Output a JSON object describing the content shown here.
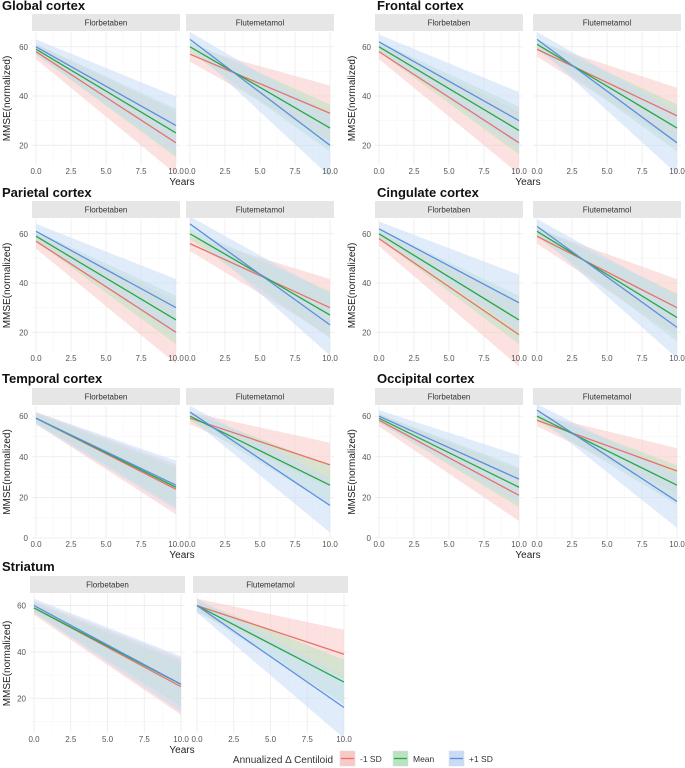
{
  "chart_data": [
    {
      "type": "line",
      "title": "Global cortex",
      "xlabel": "Years",
      "ylabel": "MMSE(normalized)",
      "xlim": [
        0,
        10
      ],
      "ylim": [
        12,
        66
      ],
      "x_ticks": [
        "0.0",
        "2.5",
        "5.0",
        "7.5",
        "10.0"
      ],
      "y_ticks": [
        20,
        40,
        60
      ],
      "facets": [
        {
          "name": "Florbetaben",
          "series": [
            {
              "name": "-1 SD",
              "x": [
                0,
                10
              ],
              "y": [
                58,
                21
              ]
            },
            {
              "name": "Mean",
              "x": [
                0,
                10
              ],
              "y": [
                59,
                25
              ]
            },
            {
              "name": "+1 SD",
              "x": [
                0,
                10
              ],
              "y": [
                60,
                28
              ]
            }
          ]
        },
        {
          "name": "Flutemetamol",
          "series": [
            {
              "name": "-1 SD",
              "x": [
                0,
                10
              ],
              "y": [
                57,
                33
              ]
            },
            {
              "name": "Mean",
              "x": [
                0,
                10
              ],
              "y": [
                60,
                27
              ]
            },
            {
              "name": "+1 SD",
              "x": [
                0,
                10
              ],
              "y": [
                63,
                20
              ]
            }
          ]
        }
      ]
    },
    {
      "type": "line",
      "title": "Frontal cortex",
      "xlabel": "Years",
      "ylabel": "MMSE(normalized)",
      "xlim": [
        0,
        10
      ],
      "ylim": [
        12,
        66
      ],
      "x_ticks": [
        "0.0",
        "2.5",
        "5.0",
        "7.5",
        "10.0"
      ],
      "y_ticks": [
        20,
        40,
        60
      ],
      "facets": [
        {
          "name": "Florbetaben",
          "series": [
            {
              "name": "-1 SD",
              "x": [
                0,
                10
              ],
              "y": [
                58,
                21
              ]
            },
            {
              "name": "Mean",
              "x": [
                0,
                10
              ],
              "y": [
                60,
                26
              ]
            },
            {
              "name": "+1 SD",
              "x": [
                0,
                10
              ],
              "y": [
                62,
                30
              ]
            }
          ]
        },
        {
          "name": "Flutemetamol",
          "series": [
            {
              "name": "-1 SD",
              "x": [
                0,
                10
              ],
              "y": [
                59,
                32
              ]
            },
            {
              "name": "Mean",
              "x": [
                0,
                10
              ],
              "y": [
                61,
                27
              ]
            },
            {
              "name": "+1 SD",
              "x": [
                0,
                10
              ],
              "y": [
                63,
                21
              ]
            }
          ]
        }
      ]
    },
    {
      "type": "line",
      "title": "Parietal cortex",
      "xlabel": "",
      "ylabel": "MMSE(normalized)",
      "xlim": [
        0,
        10
      ],
      "ylim": [
        12,
        66
      ],
      "x_ticks": [
        "0.0",
        "2.5",
        "5.0",
        "7.5",
        "10.0"
      ],
      "y_ticks": [
        20,
        40,
        60
      ],
      "facets": [
        {
          "name": "Florbetaben",
          "series": [
            {
              "name": "-1 SD",
              "x": [
                0,
                10
              ],
              "y": [
                57,
                20
              ]
            },
            {
              "name": "Mean",
              "x": [
                0,
                10
              ],
              "y": [
                59,
                25
              ]
            },
            {
              "name": "+1 SD",
              "x": [
                0,
                10
              ],
              "y": [
                61,
                30
              ]
            }
          ]
        },
        {
          "name": "Flutemetamol",
          "series": [
            {
              "name": "-1 SD",
              "x": [
                0,
                10
              ],
              "y": [
                56,
                30
              ]
            },
            {
              "name": "Mean",
              "x": [
                0,
                10
              ],
              "y": [
                60,
                27
              ]
            },
            {
              "name": "+1 SD",
              "x": [
                0,
                10
              ],
              "y": [
                64,
                23
              ]
            }
          ]
        }
      ]
    },
    {
      "type": "line",
      "title": "Cingulate cortex",
      "xlabel": "",
      "ylabel": "MMSE(normalized)",
      "xlim": [
        0,
        10
      ],
      "ylim": [
        12,
        66
      ],
      "x_ticks": [
        "0.0",
        "2.5",
        "5.0",
        "7.5",
        "10.0"
      ],
      "y_ticks": [
        20,
        40,
        60
      ],
      "facets": [
        {
          "name": "Florbetaben",
          "series": [
            {
              "name": "-1 SD",
              "x": [
                0,
                10
              ],
              "y": [
                58,
                19
              ]
            },
            {
              "name": "Mean",
              "x": [
                0,
                10
              ],
              "y": [
                60,
                25
              ]
            },
            {
              "name": "+1 SD",
              "x": [
                0,
                10
              ],
              "y": [
                62,
                32
              ]
            }
          ]
        },
        {
          "name": "Flutemetamol",
          "series": [
            {
              "name": "-1 SD",
              "x": [
                0,
                10
              ],
              "y": [
                59,
                30
              ]
            },
            {
              "name": "Mean",
              "x": [
                0,
                10
              ],
              "y": [
                61,
                26
              ]
            },
            {
              "name": "+1 SD",
              "x": [
                0,
                10
              ],
              "y": [
                63,
                22
              ]
            }
          ]
        }
      ]
    },
    {
      "type": "line",
      "title": "Temporal cortex",
      "xlabel": "Years",
      "ylabel": "MMSE(normalized)",
      "xlim": [
        0,
        10
      ],
      "ylim": [
        0,
        65
      ],
      "x_ticks": [
        "0.0",
        "2.5",
        "5.0",
        "7.5",
        "10.0"
      ],
      "y_ticks": [
        0,
        20,
        40,
        60
      ],
      "facets": [
        {
          "name": "Florbetaben",
          "series": [
            {
              "name": "-1 SD",
              "x": [
                0,
                10
              ],
              "y": [
                59,
                24
              ]
            },
            {
              "name": "Mean",
              "x": [
                0,
                10
              ],
              "y": [
                59,
                25
              ]
            },
            {
              "name": "+1 SD",
              "x": [
                0,
                10
              ],
              "y": [
                59,
                26
              ]
            }
          ]
        },
        {
          "name": "Flutemetamol",
          "series": [
            {
              "name": "-1 SD",
              "x": [
                0,
                10
              ],
              "y": [
                59,
                36
              ]
            },
            {
              "name": "Mean",
              "x": [
                0,
                10
              ],
              "y": [
                60,
                26
              ]
            },
            {
              "name": "+1 SD",
              "x": [
                0,
                10
              ],
              "y": [
                62,
                16
              ]
            }
          ]
        }
      ]
    },
    {
      "type": "line",
      "title": "Occipital cortex",
      "xlabel": "Years",
      "ylabel": "MMSE(normalized)",
      "xlim": [
        0,
        10
      ],
      "ylim": [
        0,
        65
      ],
      "x_ticks": [
        "0.0",
        "2.5",
        "5.0",
        "7.5",
        "10.0"
      ],
      "y_ticks": [
        0,
        20,
        40,
        60
      ],
      "facets": [
        {
          "name": "Florbetaben",
          "series": [
            {
              "name": "-1 SD",
              "x": [
                0,
                10
              ],
              "y": [
                58,
                21
              ]
            },
            {
              "name": "Mean",
              "x": [
                0,
                10
              ],
              "y": [
                59,
                25
              ]
            },
            {
              "name": "+1 SD",
              "x": [
                0,
                10
              ],
              "y": [
                60,
                29
              ]
            }
          ]
        },
        {
          "name": "Flutemetamol",
          "series": [
            {
              "name": "-1 SD",
              "x": [
                0,
                10
              ],
              "y": [
                58,
                33
              ]
            },
            {
              "name": "Mean",
              "x": [
                0,
                10
              ],
              "y": [
                60,
                26
              ]
            },
            {
              "name": "+1 SD",
              "x": [
                0,
                10
              ],
              "y": [
                63,
                18
              ]
            }
          ]
        }
      ]
    },
    {
      "type": "line",
      "title": "Striatum",
      "xlabel": "Years",
      "ylabel": "MMSE(normalized)",
      "xlim": [
        0,
        10
      ],
      "ylim": [
        5,
        65
      ],
      "x_ticks": [
        "0.0",
        "2.5",
        "5.0",
        "7.5",
        "10.0"
      ],
      "y_ticks": [
        20,
        40,
        60
      ],
      "facets": [
        {
          "name": "Florbetaben",
          "series": [
            {
              "name": "-1 SD",
              "x": [
                0,
                10
              ],
              "y": [
                59,
                25
              ]
            },
            {
              "name": "Mean",
              "x": [
                0,
                10
              ],
              "y": [
                59,
                26
              ]
            },
            {
              "name": "+1 SD",
              "x": [
                0,
                10
              ],
              "y": [
                60,
                26
              ]
            }
          ]
        },
        {
          "name": "Flutemetamol",
          "series": [
            {
              "name": "-1 SD",
              "x": [
                0,
                10
              ],
              "y": [
                60,
                39
              ]
            },
            {
              "name": "Mean",
              "x": [
                0,
                10
              ],
              "y": [
                60,
                27
              ]
            },
            {
              "name": "+1 SD",
              "x": [
                0,
                10
              ],
              "y": [
                60,
                16
              ]
            }
          ]
        }
      ]
    }
  ],
  "legend": {
    "title": "Annualized Δ Centiloid",
    "placement": "bottom",
    "items": [
      {
        "label": "-1 SD",
        "color": "#e8726a"
      },
      {
        "label": "Mean",
        "color": "#27a844"
      },
      {
        "label": "+1 SD",
        "color": "#5b8fde"
      }
    ]
  },
  "colors": {
    "-1 SD": "#e8726a",
    "Mean": "#27a844",
    "+1 SD": "#5b8fde",
    "-1 SD_band": "#f8c9c5",
    "Mean_band": "#b9e3c1",
    "+1 SD_band": "#c9dcf6"
  }
}
